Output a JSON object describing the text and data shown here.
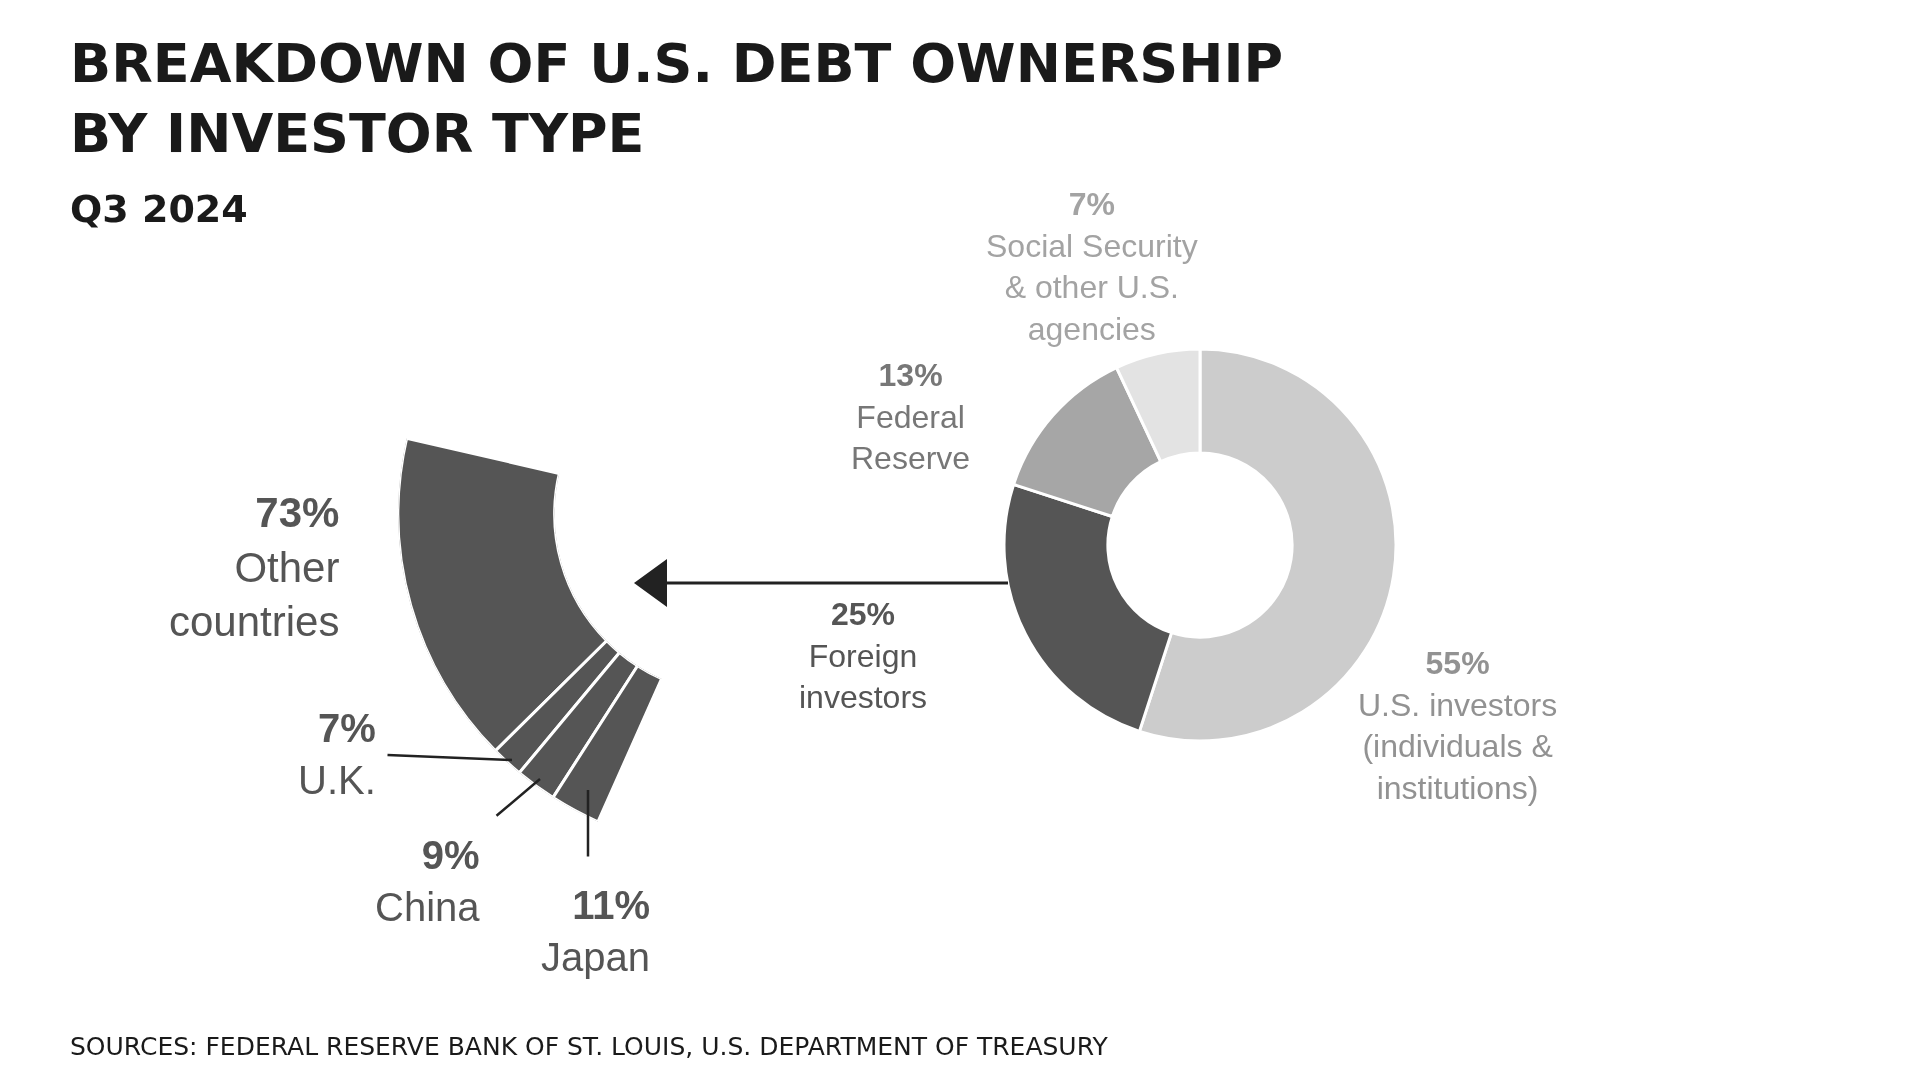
{
  "chart_data": [
    {
      "type": "donut",
      "title": "BREAKDOWN OF U.S. DEBT OWNERSHIP\nBY INVESTOR TYPE",
      "subtitle": "Q3 2024",
      "categories": [
        "Other\ncountries",
        "U.K.",
        "China",
        "Japan"
      ],
      "values": [
        73,
        7,
        9,
        11
      ],
      "value_labels": [
        "73%",
        "7%",
        "9%",
        "11%"
      ],
      "colors": [
        "#555555",
        "#555555",
        "#555555",
        "#555555"
      ],
      "annotations": [
        "SOURCES: FEDERAL RESERVE BANK OF ST. LOUIS, U.S. DEPARTMENT OF TREASURY"
      ]
    },
    {
      "type": "donut",
      "categories": [
        "U.S. investors\n(individuals &\ninstitutions)",
        "Foreign\ninvestors",
        "Federal\nReserve",
        "Social Security\n& other U.S.\nagencies"
      ],
      "values": [
        55,
        25,
        13,
        7
      ],
      "value_labels": [
        "55%",
        "25%",
        "13%",
        "7%"
      ],
      "colors": [
        "#cccccc",
        "#555555",
        "#a6a6a6",
        "#e3e3e3"
      ]
    }
  ]
}
